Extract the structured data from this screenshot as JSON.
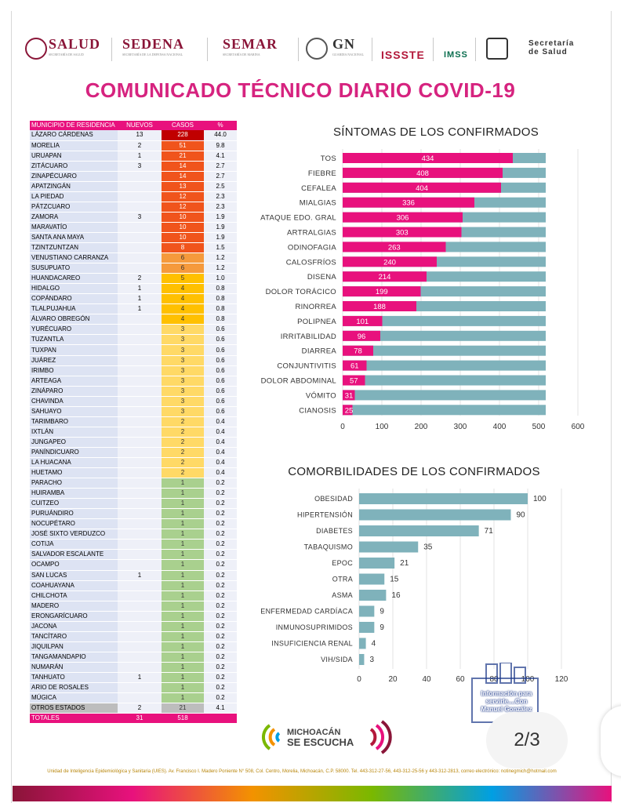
{
  "header": {
    "logos": [
      "SALUD",
      "SEDENA",
      "SEMAR",
      "GN",
      "ISSSTE",
      "IMSS",
      "Secretaría de Salud"
    ],
    "logo_subs": [
      "SECRETARÍA DE SALUD",
      "SECRETARÍA DE LA DEFENSA NACIONAL",
      "SECRETARÍA DE MARINA",
      "GUARDIA NACIONAL"
    ]
  },
  "title": "COMUNICADO TÉCNICO DIARIO COVID-19",
  "table": {
    "headers": [
      "MUNICIPIO DE RESIDENCIA",
      "NUEVOS",
      "CASOS",
      "%"
    ],
    "rows": [
      {
        "municipio": "LÁZARO CÁRDENAS",
        "nuevos": "13",
        "casos": "228",
        "pct": "44.0"
      },
      {
        "municipio": "MORELIA",
        "nuevos": "2",
        "casos": "51",
        "pct": "9.8"
      },
      {
        "municipio": "URUAPAN",
        "nuevos": "1",
        "casos": "21",
        "pct": "4.1"
      },
      {
        "municipio": "ZITÁCUARO",
        "nuevos": "3",
        "casos": "14",
        "pct": "2.7"
      },
      {
        "municipio": "ZINAPÉCUARO",
        "nuevos": "",
        "casos": "14",
        "pct": "2.7"
      },
      {
        "municipio": "APATZINGÁN",
        "nuevos": "",
        "casos": "13",
        "pct": "2.5"
      },
      {
        "municipio": "LA PIEDAD",
        "nuevos": "",
        "casos": "12",
        "pct": "2.3"
      },
      {
        "municipio": "PÁTZCUARO",
        "nuevos": "",
        "casos": "12",
        "pct": "2.3"
      },
      {
        "municipio": "ZAMORA",
        "nuevos": "3",
        "casos": "10",
        "pct": "1.9"
      },
      {
        "municipio": "MARAVATÍO",
        "nuevos": "",
        "casos": "10",
        "pct": "1.9"
      },
      {
        "municipio": "SANTA ANA MAYA",
        "nuevos": "",
        "casos": "10",
        "pct": "1.9"
      },
      {
        "municipio": "TZINTZUNTZAN",
        "nuevos": "",
        "casos": "8",
        "pct": "1.5"
      },
      {
        "municipio": "VENUSTIANO CARRANZA",
        "nuevos": "",
        "casos": "6",
        "pct": "1.2"
      },
      {
        "municipio": "SUSUPUATO",
        "nuevos": "",
        "casos": "6",
        "pct": "1.2"
      },
      {
        "municipio": "HUANDACAREO",
        "nuevos": "2",
        "casos": "5",
        "pct": "1.0"
      },
      {
        "municipio": "HIDALGO",
        "nuevos": "1",
        "casos": "4",
        "pct": "0.8"
      },
      {
        "municipio": "COPÁNDARO",
        "nuevos": "1",
        "casos": "4",
        "pct": "0.8"
      },
      {
        "municipio": "TLALPUJAHUA",
        "nuevos": "1",
        "casos": "4",
        "pct": "0.8"
      },
      {
        "municipio": "ÁLVARO OBREGÓN",
        "nuevos": "",
        "casos": "4",
        "pct": "0.8"
      },
      {
        "municipio": "YURÉCUARO",
        "nuevos": "",
        "casos": "3",
        "pct": "0.6"
      },
      {
        "municipio": "TUZANTLA",
        "nuevos": "",
        "casos": "3",
        "pct": "0.6"
      },
      {
        "municipio": "TUXPAN",
        "nuevos": "",
        "casos": "3",
        "pct": "0.6"
      },
      {
        "municipio": "JUÁREZ",
        "nuevos": "",
        "casos": "3",
        "pct": "0.6"
      },
      {
        "municipio": "IRIMBO",
        "nuevos": "",
        "casos": "3",
        "pct": "0.6"
      },
      {
        "municipio": "ARTEAGA",
        "nuevos": "",
        "casos": "3",
        "pct": "0.6"
      },
      {
        "municipio": "ZINÁPARO",
        "nuevos": "",
        "casos": "3",
        "pct": "0.6"
      },
      {
        "municipio": "CHAVINDA",
        "nuevos": "",
        "casos": "3",
        "pct": "0.6"
      },
      {
        "municipio": "SAHUAYO",
        "nuevos": "",
        "casos": "3",
        "pct": "0.6"
      },
      {
        "municipio": "TARIMBARO",
        "nuevos": "",
        "casos": "2",
        "pct": "0.4"
      },
      {
        "municipio": "IXTLÁN",
        "nuevos": "",
        "casos": "2",
        "pct": "0.4"
      },
      {
        "municipio": "JUNGAPEO",
        "nuevos": "",
        "casos": "2",
        "pct": "0.4"
      },
      {
        "municipio": "PANÍNDICUARO",
        "nuevos": "",
        "casos": "2",
        "pct": "0.4"
      },
      {
        "municipio": "LA HUACANA",
        "nuevos": "",
        "casos": "2",
        "pct": "0.4"
      },
      {
        "municipio": "HUETAMO",
        "nuevos": "",
        "casos": "2",
        "pct": "0.4"
      },
      {
        "municipio": "PARACHO",
        "nuevos": "",
        "casos": "1",
        "pct": "0.2"
      },
      {
        "municipio": "HUIRAMBA",
        "nuevos": "",
        "casos": "1",
        "pct": "0.2"
      },
      {
        "municipio": "CUITZEO",
        "nuevos": "",
        "casos": "1",
        "pct": "0.2"
      },
      {
        "municipio": "PURUÁNDIRO",
        "nuevos": "",
        "casos": "1",
        "pct": "0.2"
      },
      {
        "municipio": "NOCUPÉTARO",
        "nuevos": "",
        "casos": "1",
        "pct": "0.2"
      },
      {
        "municipio": "JOSÉ SIXTO VERDUZCO",
        "nuevos": "",
        "casos": "1",
        "pct": "0.2"
      },
      {
        "municipio": "COTIJA",
        "nuevos": "",
        "casos": "1",
        "pct": "0.2"
      },
      {
        "municipio": "SALVADOR ESCALANTE",
        "nuevos": "",
        "casos": "1",
        "pct": "0.2"
      },
      {
        "municipio": "OCAMPO",
        "nuevos": "",
        "casos": "1",
        "pct": "0.2"
      },
      {
        "municipio": "SAN LUCAS",
        "nuevos": "1",
        "casos": "1",
        "pct": "0.2"
      },
      {
        "municipio": "COAHUAYANA",
        "nuevos": "",
        "casos": "1",
        "pct": "0.2"
      },
      {
        "municipio": "CHILCHOTA",
        "nuevos": "",
        "casos": "1",
        "pct": "0.2"
      },
      {
        "municipio": "MADERO",
        "nuevos": "",
        "casos": "1",
        "pct": "0.2"
      },
      {
        "municipio": "ERONGARÍCUARO",
        "nuevos": "",
        "casos": "1",
        "pct": "0.2"
      },
      {
        "municipio": "JACONA",
        "nuevos": "",
        "casos": "1",
        "pct": "0.2"
      },
      {
        "municipio": "TANCÍTARO",
        "nuevos": "",
        "casos": "1",
        "pct": "0.2"
      },
      {
        "municipio": "JIQUILPAN",
        "nuevos": "",
        "casos": "1",
        "pct": "0.2"
      },
      {
        "municipio": "TANGAMANDAPIO",
        "nuevos": "",
        "casos": "1",
        "pct": "0.2"
      },
      {
        "municipio": "NUMARÁN",
        "nuevos": "",
        "casos": "1",
        "pct": "0.2"
      },
      {
        "municipio": "TANHUATO",
        "nuevos": "1",
        "casos": "1",
        "pct": "0.2"
      },
      {
        "municipio": "ARIO DE ROSALES",
        "nuevos": "",
        "casos": "1",
        "pct": "0.2"
      },
      {
        "municipio": "MÚGICA",
        "nuevos": "",
        "casos": "1",
        "pct": "0.2"
      },
      {
        "municipio": "OTROS ESTADOS",
        "nuevos": "2",
        "casos": "21",
        "pct": "4.1"
      }
    ],
    "totals": {
      "label": "TOTALES",
      "nuevos": "31",
      "casos": "518",
      "pct": ""
    }
  },
  "chart_data": [
    {
      "type": "bar",
      "orientation": "horizontal",
      "title": "SÍNTOMAS DE LOS CONFIRMADOS",
      "categories": [
        "TOS",
        "FIEBRE",
        "CEFALEA",
        "MIALGIAS",
        "ATAQUE EDO. GRAL",
        "ARTRALGIAS",
        "ODINOFAGIA",
        "CALOSFRÍOS",
        "DISENA",
        "DOLOR TORÁCICO",
        "RINORREA",
        "POLIPNEA",
        "IRRITABILIDAD",
        "DIARREA",
        "CONJUNTIVITIS",
        "DOLOR ABDOMINAL",
        "VÓMITO",
        "CIANOSIS"
      ],
      "values": [
        434,
        408,
        404,
        336,
        306,
        303,
        263,
        240,
        214,
        199,
        188,
        101,
        96,
        78,
        61,
        57,
        31,
        25
      ],
      "total": 518,
      "xlim": [
        0,
        600
      ],
      "xticks": [
        "0",
        "100",
        "200",
        "300",
        "400",
        "500",
        "600"
      ],
      "colors": {
        "value": "#e8117d",
        "rest": "#7fb2bb"
      }
    },
    {
      "type": "bar",
      "orientation": "horizontal",
      "title": "COMORBILIDADES DE LOS CONFIRMADOS",
      "categories": [
        "OBESIDAD",
        "HIPERTENSIÓN",
        "DIABETES",
        "TABAQUISMO",
        "EPOC",
        "OTRA",
        "ASMA",
        "ENFERMEDAD CARDÍACA",
        "INMUNOSUPRIMIDOS",
        "INSUFICIENCIA RENAL",
        "VIH/SIDA"
      ],
      "values": [
        100,
        90,
        71,
        35,
        21,
        15,
        16,
        9,
        9,
        4,
        3
      ],
      "xlim": [
        0,
        120
      ],
      "xticks": [
        "0",
        "20",
        "40",
        "60",
        "80",
        "100",
        "120"
      ],
      "colors": {
        "bar": "#7fb2bb"
      }
    }
  ],
  "footer": {
    "logo_line1": "MICHOACÁN",
    "logo_line2": "SE ESCUCHA",
    "address": "Unidad de Inteligencia Epidemiológica y Sanitaria (UIES). Av. Francisco I. Madero Poniente N° 508, Col. Centro, Morelia, Michoacán, C.P. 58000. Tel. 443-312-27-56, 443-312-25-56 y 443-312-2813, correo electrónico: notinegmich@hotmail.com",
    "page": "2/3",
    "stamp_text": "Información para servirle....Con Manuel González"
  }
}
